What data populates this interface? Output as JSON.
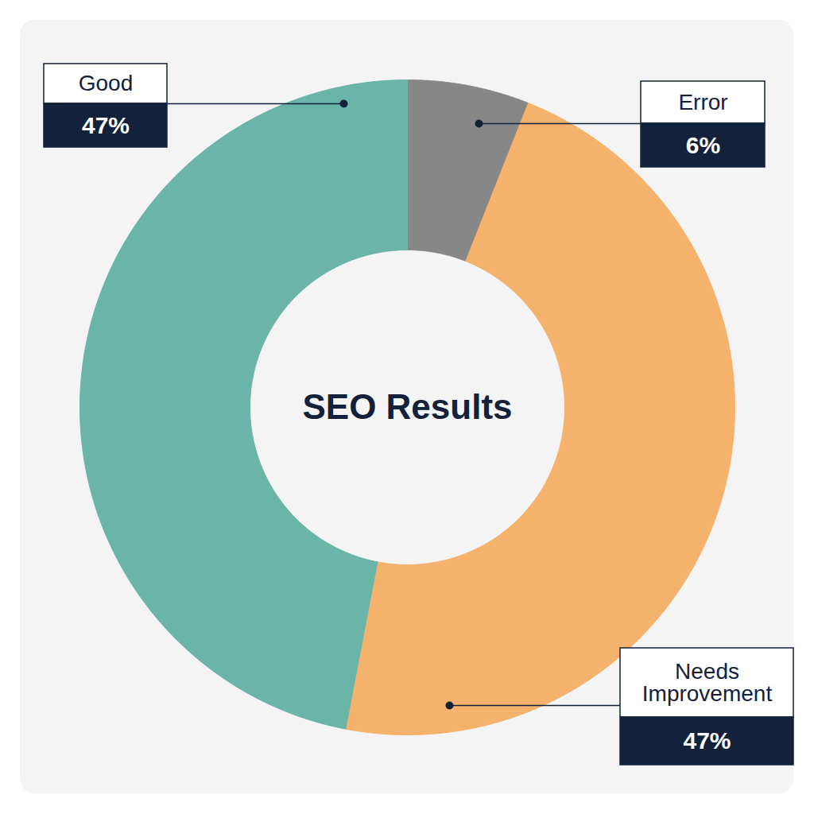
{
  "chart_data": {
    "type": "donut",
    "title": "SEO Results",
    "categories": [
      "Error",
      "Needs Improvement",
      "Good"
    ],
    "values": [
      6,
      47,
      47
    ],
    "value_labels": [
      "6%",
      "47%",
      "47%"
    ],
    "colors": [
      "#878787",
      "#f5b26d",
      "#6ab5a8"
    ],
    "data_labels": true
  }
}
